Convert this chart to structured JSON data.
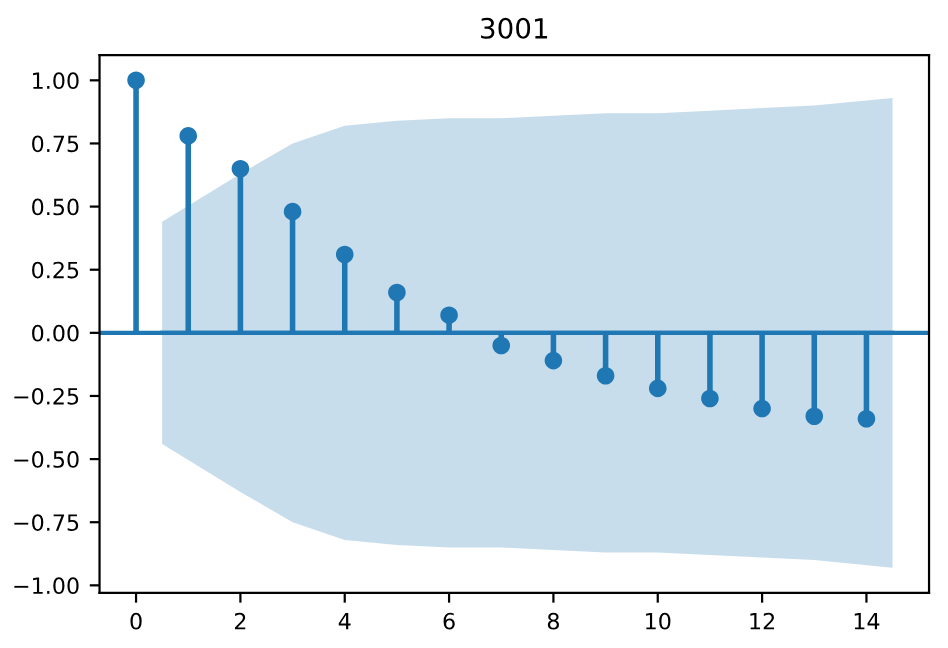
{
  "chart_data": {
    "type": "lollipop",
    "title": "3001",
    "x": [
      0,
      1,
      2,
      3,
      4,
      5,
      6,
      7,
      8,
      9,
      10,
      11,
      12,
      13,
      14
    ],
    "series": [
      {
        "type": "line",
        "color": "#1f77b4",
        "marker": "none",
        "x": [
          0.5,
          2,
          3,
          4,
          5,
          6,
          7,
          8,
          9,
          10,
          11,
          12,
          13,
          14.5
        ],
        "values": [
          0,
          0,
          0,
          0,
          0,
          0,
          0,
          0,
          0,
          0,
          0,
          0,
          0,
          0
        ],
        "lower": [
          -0.44,
          -0.63,
          -0.75,
          -0.82,
          -0.84,
          -0.85,
          -0.85,
          -0.86,
          -0.87,
          -0.87,
          -0.88,
          -0.89,
          -0.9,
          -0.93
        ],
        "upper": [
          0.44,
          0.63,
          0.75,
          0.82,
          0.84,
          0.85,
          0.85,
          0.86,
          0.87,
          0.87,
          0.88,
          0.89,
          0.9,
          0.93
        ]
      },
      {
        "color": "#1f77b4",
        "values": [
          1.0,
          0.78,
          0.65,
          0.48,
          0.31,
          0.16,
          0.07,
          -0.05,
          -0.11,
          -0.17,
          -0.22,
          -0.26,
          -0.3,
          -0.33,
          -0.34
        ]
      }
    ],
    "ref_lines": [
      {
        "axis": "y",
        "value": 0,
        "color": "#1f77b4"
      }
    ],
    "xlim": [
      -0.7,
      15.2
    ],
    "ylim": [
      -1.03,
      1.1
    ],
    "xticks": [
      0,
      2,
      4,
      6,
      8,
      10,
      12,
      14
    ],
    "yticks": [
      {
        "value": -1,
        "label": "−1.00"
      },
      {
        "value": -0.75,
        "label": "−0.75"
      },
      {
        "value": -0.5,
        "label": "−0.50"
      },
      {
        "value": -0.25,
        "label": "−0.25"
      },
      {
        "value": 0,
        "label": "0.00"
      },
      {
        "value": 0.25,
        "label": "0.25"
      },
      {
        "value": 0.5,
        "label": "0.50"
      },
      {
        "value": 0.75,
        "label": "0.75"
      },
      {
        "value": 1,
        "label": "1.00"
      }
    ],
    "marker": "circle",
    "grid": false,
    "legend": false
  }
}
